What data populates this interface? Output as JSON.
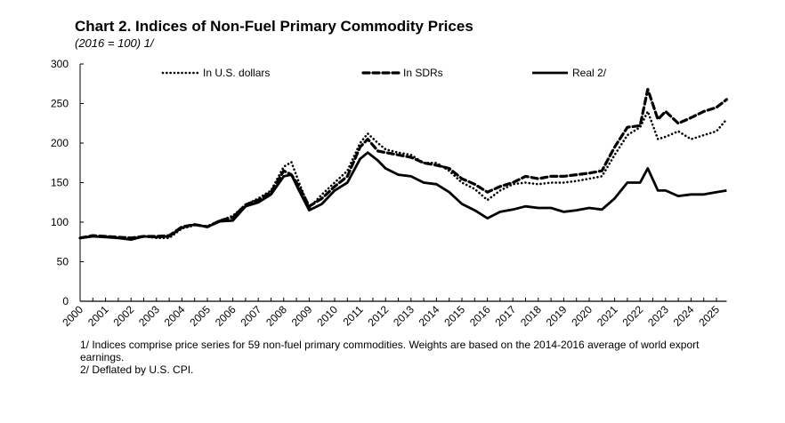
{
  "title": "Chart 2. Indices of Non-Fuel Primary Commodity Prices",
  "subtitle": "(2016 = 100) 1/",
  "notes": [
    "1/ Indices comprise price series for 59 non-fuel primary commodities. Weights are based on the 2014-2016 average of world export earnings.",
    "2/ Deflated by U.S. CPI."
  ],
  "chart_data": {
    "type": "line",
    "title": "Chart 2. Indices of Non-Fuel Primary Commodity Prices",
    "subtitle": "(2016 = 100) 1/",
    "xlabel": "",
    "ylabel": "",
    "xlim": [
      2000,
      2025.4
    ],
    "ylim": [
      0,
      300
    ],
    "yticks": [
      0,
      50,
      100,
      150,
      200,
      250,
      300
    ],
    "xticks": [
      "2000",
      "2001",
      "2002",
      "2003",
      "2004",
      "2005",
      "2006",
      "2007",
      "2008",
      "2009",
      "2010",
      "2011",
      "2012",
      "2013",
      "2014",
      "2015",
      "2016",
      "2017",
      "2018",
      "2019",
      "2020",
      "2021",
      "2022",
      "2023",
      "2024",
      "2025"
    ],
    "grid": false,
    "legend_position": "top",
    "x": [
      2000.0,
      2000.5,
      2001.0,
      2001.5,
      2002.0,
      2002.5,
      2003.0,
      2003.5,
      2004.0,
      2004.5,
      2005.0,
      2005.5,
      2006.0,
      2006.5,
      2007.0,
      2007.5,
      2008.0,
      2008.3,
      2008.6,
      2009.0,
      2009.5,
      2010.0,
      2010.5,
      2011.0,
      2011.3,
      2011.7,
      2012.0,
      2012.5,
      2013.0,
      2013.5,
      2014.0,
      2014.5,
      2015.0,
      2015.5,
      2016.0,
      2016.5,
      2017.0,
      2017.5,
      2018.0,
      2018.5,
      2019.0,
      2019.5,
      2020.0,
      2020.5,
      2021.0,
      2021.5,
      2022.0,
      2022.3,
      2022.7,
      2023.0,
      2023.5,
      2024.0,
      2024.5,
      2025.0,
      2025.4
    ],
    "series": [
      {
        "name": "In U.S. dollars",
        "style": "dotted",
        "values": [
          80,
          82,
          82,
          80,
          79,
          82,
          80,
          80,
          92,
          96,
          95,
          102,
          108,
          122,
          130,
          140,
          170,
          176,
          150,
          118,
          135,
          150,
          165,
          200,
          212,
          200,
          192,
          188,
          185,
          175,
          175,
          165,
          150,
          142,
          128,
          140,
          148,
          150,
          148,
          150,
          150,
          152,
          155,
          158,
          185,
          210,
          220,
          240,
          205,
          208,
          215,
          205,
          210,
          215,
          230
        ]
      },
      {
        "name": "In SDRs",
        "style": "dashed",
        "values": [
          80,
          83,
          82,
          81,
          80,
          82,
          82,
          83,
          94,
          97,
          94,
          102,
          106,
          122,
          128,
          138,
          165,
          160,
          145,
          120,
          130,
          145,
          158,
          195,
          205,
          190,
          188,
          185,
          182,
          175,
          172,
          168,
          155,
          148,
          138,
          145,
          150,
          158,
          155,
          158,
          158,
          160,
          162,
          165,
          195,
          220,
          222,
          268,
          230,
          240,
          225,
          232,
          240,
          245,
          255
        ]
      },
      {
        "name": "Real 2/",
        "style": "solid",
        "values": [
          80,
          82,
          81,
          80,
          78,
          82,
          81,
          82,
          93,
          97,
          94,
          101,
          102,
          120,
          125,
          135,
          158,
          160,
          140,
          115,
          123,
          140,
          150,
          180,
          188,
          178,
          168,
          160,
          158,
          150,
          148,
          138,
          123,
          115,
          105,
          113,
          116,
          120,
          118,
          118,
          113,
          115,
          118,
          116,
          130,
          150,
          150,
          168,
          140,
          140,
          133,
          135,
          135,
          138,
          140
        ]
      }
    ]
  }
}
